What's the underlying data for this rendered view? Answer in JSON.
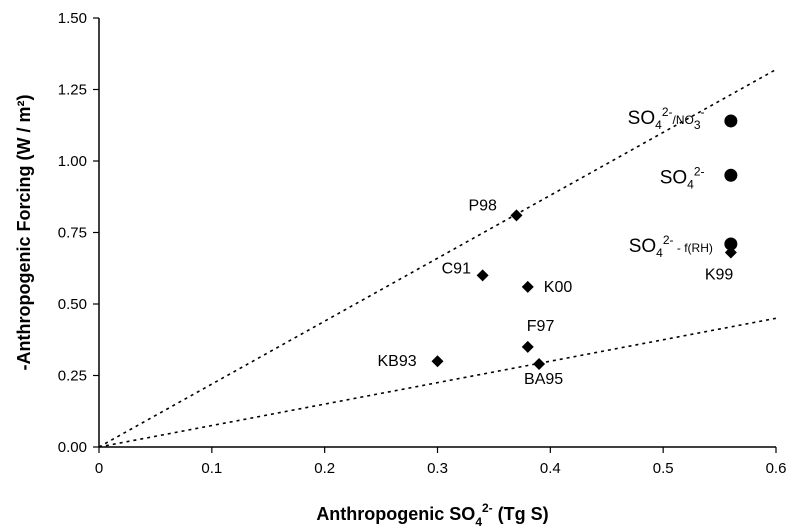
{
  "chart_data": {
    "type": "scatter",
    "xlabel": {
      "main": "Anthropogenic SO",
      "sub": "4",
      "sup": "2-",
      "tail": " (Tg S)"
    },
    "ylabel": "-Anthropogenic Forcing (W / m²)",
    "xlim": [
      0,
      0.6
    ],
    "ylim": [
      0,
      1.5
    ],
    "xticks": [
      0,
      0.1,
      0.2,
      0.3,
      0.4,
      0.5,
      0.6
    ],
    "xtick_labels": [
      "0",
      "0.1",
      "0.2",
      "0.3",
      "0.4",
      "0.5",
      "0.6"
    ],
    "yticks": [
      0,
      0.25,
      0.5,
      0.75,
      1.0,
      1.25,
      1.5
    ],
    "ytick_labels": [
      "0.00",
      "0.25",
      "0.50",
      "0.75",
      "1.00",
      "1.25",
      "1.50"
    ],
    "grid": false,
    "series": [
      {
        "marker": "diamond",
        "points": [
          {
            "label": "P98",
            "x": 0.37,
            "y": 0.81
          },
          {
            "label": "C91",
            "x": 0.34,
            "y": 0.6
          },
          {
            "label": "K00",
            "x": 0.38,
            "y": 0.56
          },
          {
            "label": "F97",
            "x": 0.38,
            "y": 0.35
          },
          {
            "label": "KB93",
            "x": 0.3,
            "y": 0.3
          },
          {
            "label": "BA95",
            "x": 0.39,
            "y": 0.29
          },
          {
            "label": "K99",
            "x": 0.56,
            "y": 0.68
          }
        ]
      },
      {
        "marker": "circle",
        "points": [
          {
            "label": "SO4 2-/NO3 -",
            "x": 0.56,
            "y": 1.14
          },
          {
            "label": "SO4 2-",
            "x": 0.56,
            "y": 0.95
          },
          {
            "label": "SO4 2- - f(RH)",
            "x": 0.56,
            "y": 0.71
          }
        ]
      }
    ],
    "reference_lines": [
      {
        "style": "dotted",
        "from": [
          0,
          0
        ],
        "to": [
          0.6,
          1.32
        ]
      },
      {
        "style": "dotted",
        "from": [
          0,
          0
        ],
        "to": [
          0.6,
          0.45
        ]
      }
    ]
  }
}
